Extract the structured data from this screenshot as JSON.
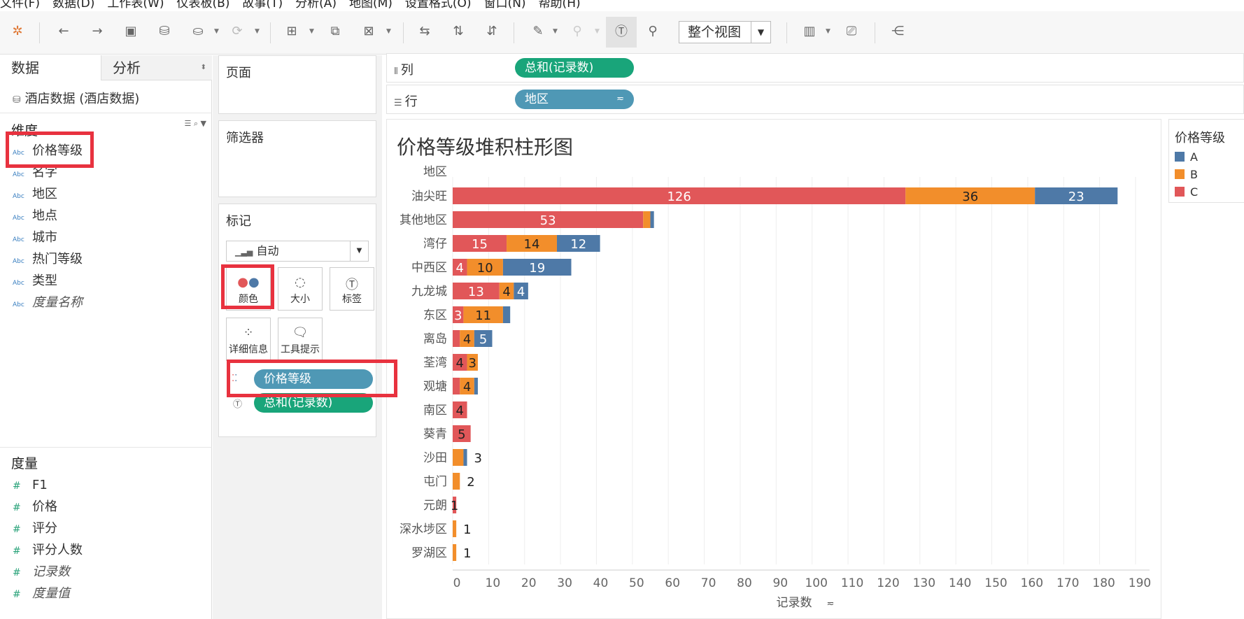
{
  "menu": [
    "文件(F)",
    "数据(D)",
    "工作表(W)",
    "仪表板(B)",
    "故事(T)",
    "分析(A)",
    "地图(M)",
    "设置格式(O)",
    "窗口(N)",
    "帮助(H)"
  ],
  "toolbar": {
    "view_mode": "整个视图"
  },
  "left": {
    "tab_data": "数据",
    "tab_analysis": "分析",
    "datasource": "酒店数据 (酒店数据)",
    "dimensions_title": "维度",
    "dimensions": [
      "价格等级",
      "名字",
      "地区",
      "地点",
      "城市",
      "热门等级",
      "类型",
      "度量名称"
    ],
    "measures_title": "度量",
    "measures": [
      "F1",
      "价格",
      "评分",
      "评分人数",
      "记录数",
      "度量值"
    ]
  },
  "cards": {
    "pages": "页面",
    "filters": "筛选器",
    "marks": "标记",
    "mark_type": "自动",
    "btn_color": "颜色",
    "btn_size": "大小",
    "btn_label": "标签",
    "btn_detail": "详细信息",
    "btn_tooltip": "工具提示",
    "pill_color": "价格等级",
    "pill_label": "总和(记录数)"
  },
  "shelves": {
    "columns_label": "列",
    "columns_pill": "总和(记录数)",
    "rows_label": "行",
    "rows_pill": "地区"
  },
  "legend": {
    "title": "价格等级",
    "items": [
      {
        "name": "A",
        "color": "#4e79a7"
      },
      {
        "name": "B",
        "color": "#f28e2b"
      },
      {
        "name": "C",
        "color": "#e15759"
      }
    ]
  },
  "chart_data": {
    "type": "bar",
    "orientation": "horizontal-stacked",
    "title": "价格等级堆积柱形图",
    "row_header": "地区",
    "xlabel": "记录数",
    "xlim": [
      0,
      190
    ],
    "xticks": [
      0,
      10,
      20,
      30,
      40,
      50,
      60,
      70,
      80,
      90,
      100,
      110,
      120,
      130,
      140,
      150,
      160,
      170,
      180,
      190
    ],
    "categories": [
      "油尖旺",
      "其他地区",
      "湾仔",
      "中西区",
      "九龙城",
      "东区",
      "离岛",
      "荃湾",
      "观塘",
      "南区",
      "葵青",
      "沙田",
      "屯门",
      "元朗",
      "深水埗区",
      "罗湖区"
    ],
    "series": [
      {
        "name": "C",
        "color": "#e15759",
        "values": [
          126,
          53,
          15,
          4,
          13,
          3,
          2,
          4,
          2,
          4,
          5,
          0,
          0,
          1,
          0,
          0
        ]
      },
      {
        "name": "B",
        "color": "#f28e2b",
        "values": [
          36,
          2,
          14,
          10,
          4,
          11,
          4,
          3,
          4,
          0,
          0,
          3,
          2,
          0,
          1,
          1
        ]
      },
      {
        "name": "A",
        "color": "#4e79a7",
        "values": [
          23,
          1,
          12,
          19,
          4,
          2,
          5,
          0,
          1,
          0,
          0,
          1,
          0,
          0,
          0,
          0
        ]
      }
    ],
    "bar_labels": [
      [
        "126",
        "36",
        "23"
      ],
      [
        "53",
        "",
        ""
      ],
      [
        "15",
        "14",
        "12"
      ],
      [
        "4",
        "10",
        "19"
      ],
      [
        "13",
        "4",
        "4"
      ],
      [
        "3",
        "11",
        ""
      ],
      [
        "",
        "4",
        "5"
      ],
      [
        "4",
        "3",
        ""
      ],
      [
        "",
        "4",
        ""
      ],
      [
        "4",
        "",
        ""
      ],
      [
        "5",
        "",
        ""
      ],
      [
        "3",
        "",
        ""
      ],
      [
        "2",
        "",
        ""
      ],
      [
        "1",
        "",
        ""
      ],
      [
        "1",
        "",
        ""
      ],
      [
        "1",
        "",
        ""
      ]
    ]
  }
}
